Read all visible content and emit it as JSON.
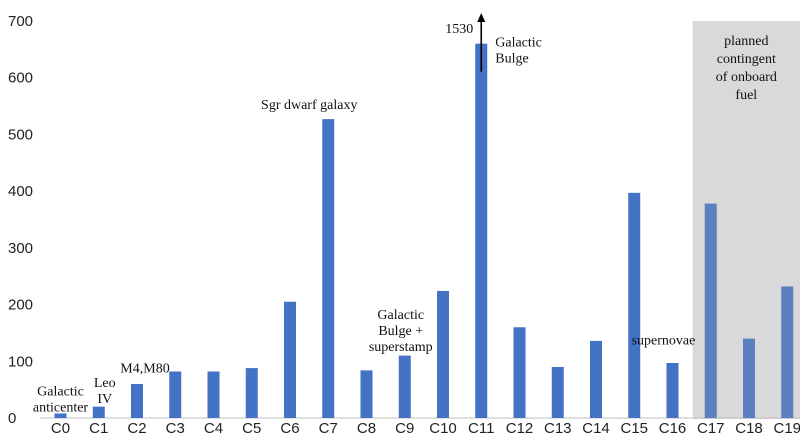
{
  "chart_data": {
    "type": "bar",
    "title": "",
    "xlabel": "",
    "ylabel": "",
    "ylim": [
      0,
      700
    ],
    "yticks": [
      0,
      100,
      200,
      300,
      400,
      500,
      600,
      700
    ],
    "grid": false,
    "categories": [
      "C0",
      "C1",
      "C2",
      "C3",
      "C4",
      "C5",
      "C6",
      "C7",
      "C8",
      "C9",
      "C10",
      "C11",
      "C12",
      "C13",
      "C14",
      "C15",
      "C16",
      "C17",
      "C18",
      "C19"
    ],
    "values": [
      8,
      20,
      60,
      82,
      82,
      88,
      205,
      527,
      84,
      110,
      224,
      660,
      160,
      90,
      136,
      397,
      97,
      378,
      140,
      232
    ],
    "bar_color": "#4472C4",
    "shaded_bar_color": "#5B7FBF",
    "shaded_region": {
      "from_category": "C17",
      "to_category": "C19",
      "color": "#D9D9D9",
      "label_lines": [
        "planned",
        "contingent",
        "of onboard",
        "fuel"
      ]
    },
    "arrow_value_label": "1530",
    "annotations": [
      {
        "category": "C0",
        "value": 40,
        "lines": [
          "Galactic",
          "anticenter"
        ]
      },
      {
        "category": "C1",
        "value": 55,
        "lines": [
          "Leo",
          "IV"
        ]
      },
      {
        "category": "C2",
        "value": 80,
        "lines": [
          "M4,M80"
        ]
      },
      {
        "category": "C7",
        "value": 545,
        "lines": [
          "Sgr dwarf galaxy"
        ]
      },
      {
        "category": "C9",
        "value": 175,
        "lines": [
          "Galactic",
          "Bulge +",
          "superstamp"
        ]
      },
      {
        "category": "C11",
        "value": 655,
        "lines": [
          "Galactic",
          "Bulge"
        ]
      },
      {
        "category": "C16",
        "value": 130,
        "lines": [
          "supernovae"
        ]
      }
    ]
  }
}
